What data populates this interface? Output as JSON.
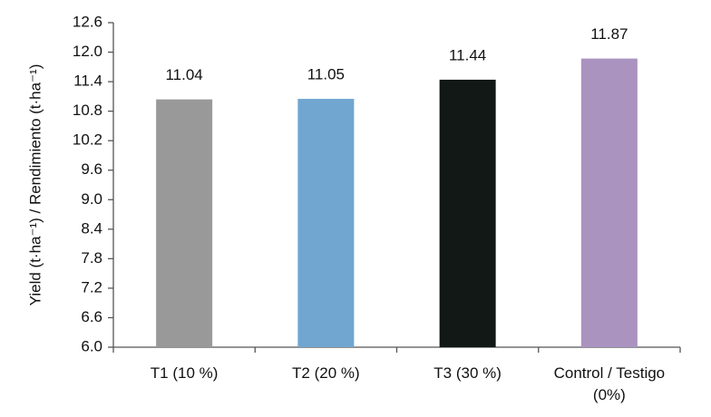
{
  "chart_data": {
    "type": "bar",
    "y_label": "Yield (t·ha⁻¹) / Rendimiento (t·ha⁻¹)",
    "categories": [
      "T1 (10 %)",
      "T2 (20 %)",
      "T3 (30 %)",
      "Control / Testigo (0%)"
    ],
    "values": [
      11.04,
      11.05,
      11.44,
      11.87
    ],
    "colors": [
      "#999999",
      "#70a6d0",
      "#111816",
      "#ab93c0"
    ],
    "ylim": [
      6.0,
      12.6
    ],
    "yticks": [
      {
        "value": 6.0,
        "label": "6.0"
      },
      6.6,
      7.2,
      7.8,
      8.4,
      {
        "value": 9.0,
        "label": "9.0"
      },
      9.6,
      10.2,
      10.8,
      11.4,
      {
        "value": 12.0,
        "label": "12.0"
      },
      12.6
    ],
    "grid": false
  }
}
